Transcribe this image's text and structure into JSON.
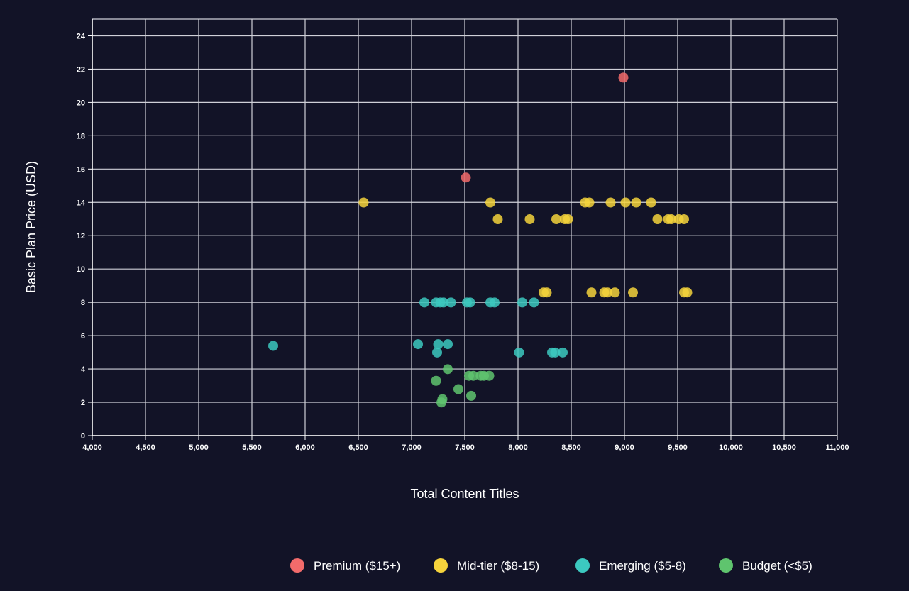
{
  "chart_data": {
    "type": "scatter",
    "title": "",
    "xlabel": "Total Content Titles",
    "ylabel": "Basic Plan Price (USD)",
    "xlim": [
      4000,
      11000
    ],
    "ylim": [
      0,
      25
    ],
    "x_ticks": [
      4000,
      4500,
      5000,
      5500,
      6000,
      6500,
      7000,
      7500,
      8000,
      8500,
      9000,
      9500,
      10000,
      10500,
      11000
    ],
    "x_tick_labels": [
      "4,000",
      "4,500",
      "5,000",
      "5,500",
      "6,000",
      "6,500",
      "7,000",
      "7,500",
      "8,000",
      "8,500",
      "9,000",
      "9,500",
      "10,000",
      "10,500",
      "11,000"
    ],
    "y_ticks": [
      0,
      2,
      4,
      6,
      8,
      10,
      12,
      14,
      16,
      18,
      20,
      22,
      24
    ],
    "y_tick_labels": [
      "0",
      "2",
      "4",
      "6",
      "8",
      "10",
      "12",
      "14",
      "16",
      "18",
      "20",
      "22",
      "24"
    ],
    "grid": true,
    "legend_position": "bottom",
    "series": [
      {
        "name": "Premium ($15+)",
        "color": "#f26b6b",
        "points": [
          {
            "x": 7510,
            "y": 15.49
          },
          {
            "x": 8990,
            "y": 21.49
          }
        ]
      },
      {
        "name": "Mid-tier ($8-15)",
        "color": "#f5d33c",
        "points": [
          {
            "x": 6550,
            "y": 13.99
          },
          {
            "x": 7740,
            "y": 13.99
          },
          {
            "x": 7810,
            "y": 12.99
          },
          {
            "x": 8110,
            "y": 12.99
          },
          {
            "x": 8360,
            "y": 12.99
          },
          {
            "x": 8440,
            "y": 12.99
          },
          {
            "x": 8470,
            "y": 12.99
          },
          {
            "x": 8630,
            "y": 13.99
          },
          {
            "x": 8670,
            "y": 13.99
          },
          {
            "x": 8870,
            "y": 13.99
          },
          {
            "x": 9010,
            "y": 13.99
          },
          {
            "x": 9110,
            "y": 13.99
          },
          {
            "x": 9250,
            "y": 13.99
          },
          {
            "x": 9310,
            "y": 12.99
          },
          {
            "x": 9410,
            "y": 12.99
          },
          {
            "x": 9440,
            "y": 12.99
          },
          {
            "x": 9510,
            "y": 12.99
          },
          {
            "x": 9560,
            "y": 12.99
          },
          {
            "x": 8240,
            "y": 8.59
          },
          {
            "x": 8270,
            "y": 8.59
          },
          {
            "x": 8690,
            "y": 8.59
          },
          {
            "x": 8810,
            "y": 8.59
          },
          {
            "x": 8840,
            "y": 8.59
          },
          {
            "x": 8910,
            "y": 8.59
          },
          {
            "x": 9080,
            "y": 8.59
          },
          {
            "x": 9560,
            "y": 8.59
          },
          {
            "x": 9590,
            "y": 8.59
          }
        ]
      },
      {
        "name": "Emerging ($5-8)",
        "color": "#3cc9c0",
        "points": [
          {
            "x": 5700,
            "y": 5.39
          },
          {
            "x": 7060,
            "y": 5.49
          },
          {
            "x": 7240,
            "y": 4.99
          },
          {
            "x": 7250,
            "y": 5.49
          },
          {
            "x": 7340,
            "y": 5.49
          },
          {
            "x": 7120,
            "y": 7.99
          },
          {
            "x": 7230,
            "y": 7.99
          },
          {
            "x": 7270,
            "y": 7.99
          },
          {
            "x": 7300,
            "y": 7.99
          },
          {
            "x": 7370,
            "y": 7.99
          },
          {
            "x": 7520,
            "y": 7.99
          },
          {
            "x": 7550,
            "y": 7.99
          },
          {
            "x": 7740,
            "y": 7.99
          },
          {
            "x": 7780,
            "y": 7.99
          },
          {
            "x": 8040,
            "y": 7.99
          },
          {
            "x": 8150,
            "y": 7.99
          },
          {
            "x": 8010,
            "y": 4.99
          },
          {
            "x": 8320,
            "y": 4.99
          },
          {
            "x": 8350,
            "y": 4.99
          },
          {
            "x": 8420,
            "y": 4.99
          }
        ]
      },
      {
        "name": "Budget (<$5)",
        "color": "#5fc46e",
        "points": [
          {
            "x": 7230,
            "y": 3.29
          },
          {
            "x": 7280,
            "y": 1.99
          },
          {
            "x": 7290,
            "y": 2.19
          },
          {
            "x": 7340,
            "y": 3.99
          },
          {
            "x": 7440,
            "y": 2.79
          },
          {
            "x": 7540,
            "y": 3.59
          },
          {
            "x": 7560,
            "y": 2.39
          },
          {
            "x": 7580,
            "y": 3.59
          },
          {
            "x": 7650,
            "y": 3.59
          },
          {
            "x": 7680,
            "y": 3.59
          },
          {
            "x": 7730,
            "y": 3.59
          }
        ]
      }
    ]
  }
}
